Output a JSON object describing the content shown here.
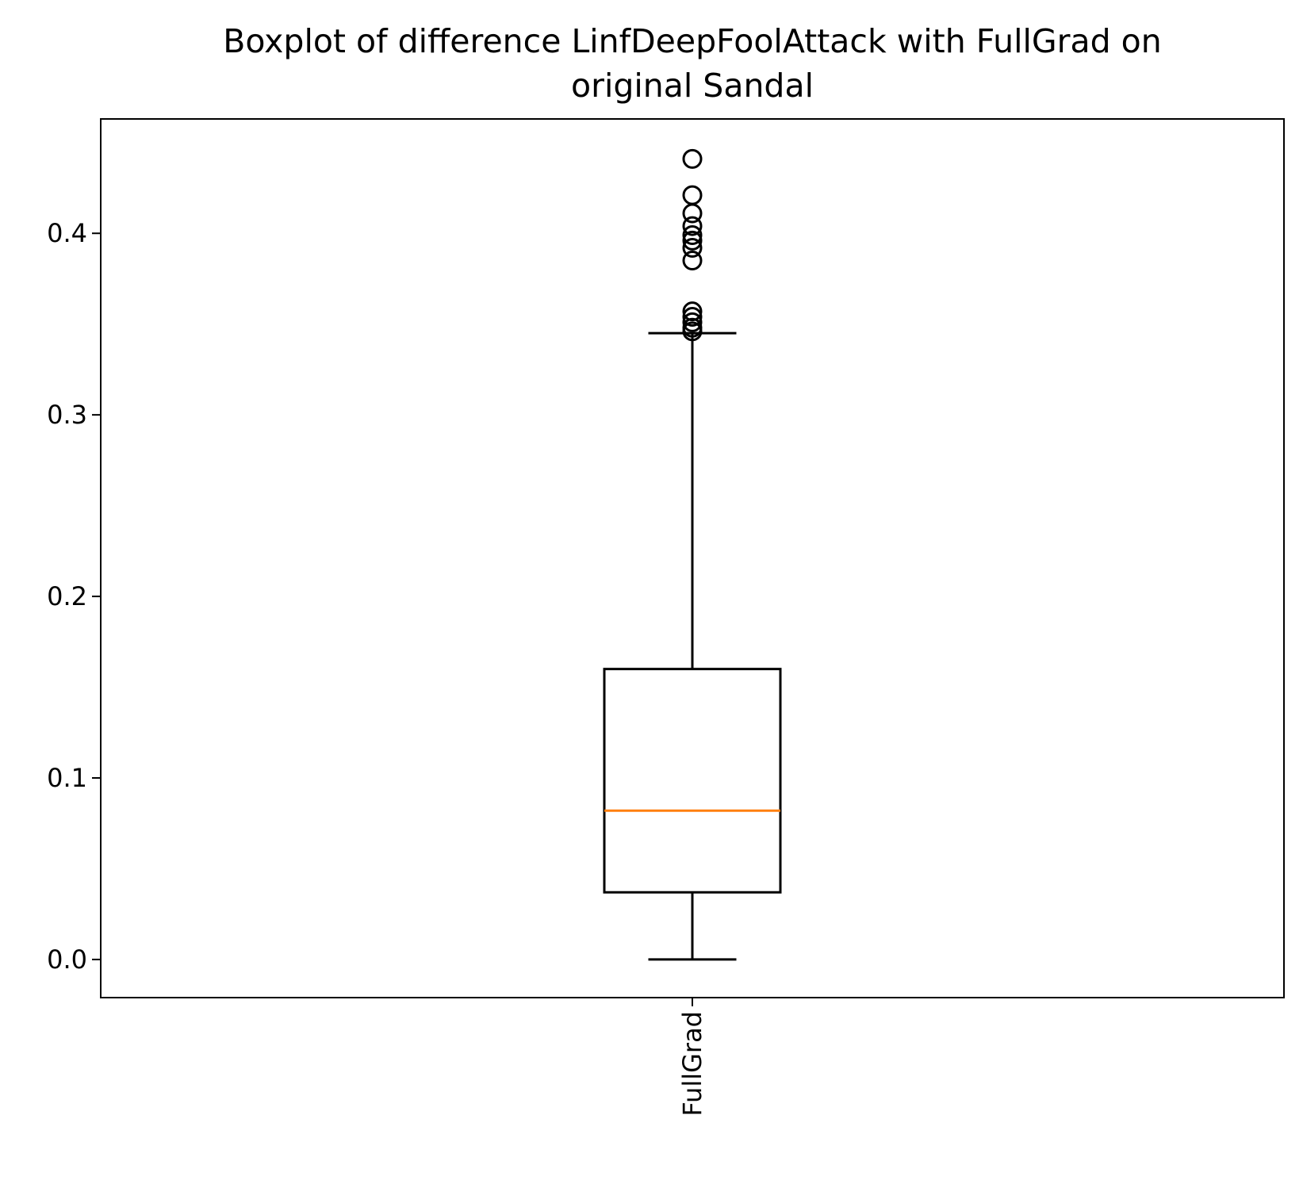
{
  "chart_data": {
    "type": "box",
    "title": "Boxplot of difference LinfDeepFoolAttack with FullGrad on original Sandal",
    "title_lines": [
      "Boxplot of difference LinfDeepFoolAttack with FullGrad on",
      "original Sandal"
    ],
    "xlabel": "",
    "ylabel": "",
    "ylim": [
      -0.021,
      0.463
    ],
    "yticks": [
      0.0,
      0.1,
      0.2,
      0.3,
      0.4
    ],
    "ytick_labels": [
      "0.0",
      "0.1",
      "0.2",
      "0.3",
      "0.4"
    ],
    "grid": false,
    "categories": [
      "FullGrad"
    ],
    "boxes": [
      {
        "label": "FullGrad",
        "whisker_low": 0.0,
        "q1": 0.037,
        "median": 0.082,
        "q3": 0.16,
        "whisker_high": 0.345,
        "outliers": [
          0.441,
          0.421,
          0.411,
          0.404,
          0.399,
          0.396,
          0.392,
          0.385,
          0.357,
          0.354,
          0.351,
          0.348,
          0.346
        ]
      }
    ],
    "colors": {
      "box": "#000000",
      "median": "#ff7f0e",
      "outlier": "#000000",
      "background": "#ffffff"
    }
  }
}
